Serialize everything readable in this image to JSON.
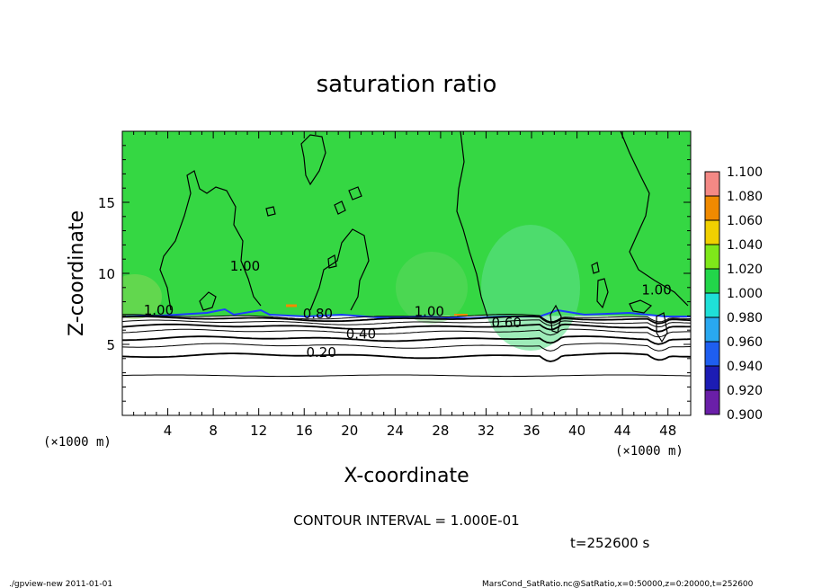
{
  "chart_data": {
    "type": "heatmap",
    "title": "saturation ratio",
    "xlabel": "X-coordinate",
    "ylabel": "Z-coordinate",
    "x_unit": "(×1000 m)",
    "y_unit": "(×1000 m)",
    "xlim": [
      0,
      50
    ],
    "ylim": [
      0,
      20
    ],
    "x_ticks": [
      4,
      8,
      12,
      16,
      20,
      24,
      28,
      32,
      36,
      40,
      44,
      48
    ],
    "y_ticks": [
      5,
      10,
      15
    ],
    "colorbar": {
      "levels": [
        "0.900",
        "0.920",
        "0.940",
        "0.960",
        "0.980",
        "1.000",
        "1.020",
        "1.040",
        "1.060",
        "1.080",
        "1.100"
      ],
      "colors": [
        "#6a1fa8",
        "#1c1cb4",
        "#1e5ef0",
        "#29a8f0",
        "#1fe0d8",
        "#22d64a",
        "#7fe81a",
        "#f0d000",
        "#f08a00",
        "#ef2a1c",
        "#f59a98"
      ]
    },
    "field": {
      "background_color": "#35d743",
      "lower_region_color": "#ffffff",
      "layer_top_z": 7.0
    },
    "contour_interval_text": "CONTOUR INTERVAL = 1.000E-01",
    "contour_labels": [
      {
        "text": "1.00",
        "x": 3.2,
        "z": 7.1
      },
      {
        "text": "1.00",
        "x": 10.8,
        "z": 10.2
      },
      {
        "text": "0.80",
        "x": 17.2,
        "z": 6.85
      },
      {
        "text": "1.00",
        "x": 27.0,
        "z": 7.0
      },
      {
        "text": "0.60",
        "x": 33.8,
        "z": 6.2
      },
      {
        "text": "1.00",
        "x": 47.0,
        "z": 8.5
      },
      {
        "text": "0.40",
        "x": 21.0,
        "z": 5.4
      },
      {
        "text": "0.20",
        "x": 17.5,
        "z": 4.1
      }
    ],
    "contour_bands": [
      {
        "value": 0.2,
        "z": 4.2
      },
      {
        "value": 0.3,
        "z": 4.9
      },
      {
        "value": 0.4,
        "z": 5.4
      },
      {
        "value": 0.5,
        "z": 5.9
      },
      {
        "value": 0.6,
        "z": 6.25
      },
      {
        "value": 0.7,
        "z": 6.55
      },
      {
        "value": 0.8,
        "z": 6.8
      },
      {
        "value": 0.9,
        "z": 6.95
      }
    ],
    "lower_line_z": 2.8,
    "time_text": "t=252600 s"
  },
  "footer": {
    "left": "./gpview-new  2011-01-01",
    "right": "MarsCond_SatRatio.nc@SatRatio,x=0:50000,z=0:20000,t=252600"
  }
}
